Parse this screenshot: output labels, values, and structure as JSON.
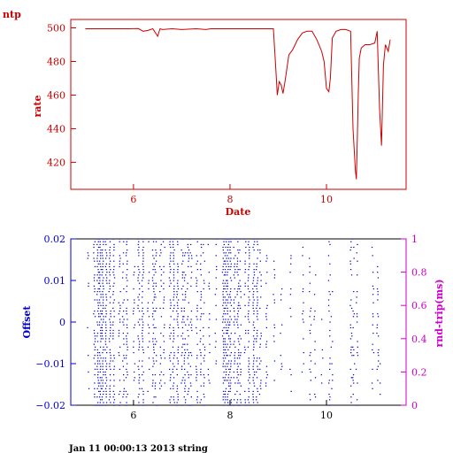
{
  "header": {
    "label": "ntp"
  },
  "footer": {
    "text": "Jan 11 00:00:13 2013 string"
  },
  "colors": {
    "red": "#cc0000",
    "blue": "#0000cc",
    "magenta": "#cc00cc",
    "axis": "#000000"
  },
  "chart_data": [
    {
      "type": "line",
      "xlabel": "Date",
      "ylabel": "rate",
      "xlim": [
        4.7,
        11.65
      ],
      "ylim": [
        404,
        505
      ],
      "xticks": [
        6,
        8,
        10
      ],
      "yticks": [
        420,
        440,
        460,
        480,
        500
      ],
      "series": [
        {
          "x": [
            5.0,
            5.5,
            5.9,
            6.1,
            6.2,
            6.3,
            6.4,
            6.5,
            6.55,
            6.6,
            6.8,
            7.0,
            7.3,
            7.5,
            7.6,
            7.8,
            8.2,
            8.6,
            8.9,
            8.95,
            8.98,
            9.02,
            9.06,
            9.1,
            9.14,
            9.18,
            9.22,
            9.3,
            9.4,
            9.5,
            9.6,
            9.7,
            9.8,
            9.9,
            9.95,
            10.0,
            10.05,
            10.08,
            10.12,
            10.2,
            10.3,
            10.4,
            10.5,
            10.55,
            10.6,
            10.62,
            10.64,
            10.66,
            10.68,
            10.72,
            10.8,
            10.9,
            11.0,
            11.05,
            11.1,
            11.14,
            11.18,
            11.22,
            11.28,
            11.32
          ],
          "y": [
            499.5,
            499.5,
            499.5,
            499.6,
            498,
            498.5,
            499.5,
            495,
            499.5,
            499,
            499.5,
            499,
            499.5,
            499,
            499.5,
            499.5,
            499.5,
            499.5,
            499.5,
            475,
            460,
            468,
            466,
            461,
            468,
            476,
            484,
            487,
            493,
            497,
            498,
            498,
            493,
            486,
            480,
            464,
            462,
            470,
            494,
            498,
            499,
            499,
            498,
            440,
            415,
            410,
            435,
            462,
            482,
            488,
            490,
            490,
            491,
            498,
            452,
            430,
            478,
            490,
            486,
            493
          ]
        }
      ]
    },
    {
      "type": "scatter",
      "ylabel": "Offset",
      "y2label": "rnd-trip(ms)",
      "xlim": [
        4.7,
        11.65
      ],
      "ylim": [
        -0.02,
        0.02
      ],
      "y2lim": [
        0,
        1
      ],
      "xticks": [
        6,
        8,
        10
      ],
      "yticks": [
        -0.02,
        -0.01,
        0,
        0.01,
        0.02
      ],
      "ytick_labels": [
        "−0.02",
        "−0.01",
        "0",
        "0.01",
        "0.02"
      ],
      "y2ticks": [
        0,
        0.2,
        0.4,
        0.6,
        0.8,
        1
      ],
      "series": [
        {
          "x": [
            5.05,
            5.18,
            5.25,
            5.3,
            5.35,
            5.42,
            5.5,
            5.58,
            5.7,
            5.78,
            5.85,
            6.0,
            6.1,
            6.18,
            6.3,
            6.4,
            6.45,
            6.55,
            6.62,
            6.75,
            6.82,
            6.9,
            7.0,
            7.05,
            7.12,
            7.18,
            7.3,
            7.38,
            7.45,
            7.55,
            7.7,
            7.85,
            7.9,
            7.95,
            8.0,
            8.08,
            8.15,
            8.2,
            8.3,
            8.38,
            8.48,
            8.55,
            8.62,
            8.75,
            8.9,
            9.05,
            9.25,
            9.5,
            9.65,
            9.75,
            9.9,
            10.05,
            10.1,
            10.5,
            10.55,
            10.62,
            10.95,
            11.05,
            11.1
          ],
          "density": [
            0.2,
            0.6,
            0.85,
            0.95,
            0.95,
            0.9,
            0.8,
            0.55,
            0.4,
            0.5,
            0.6,
            0.3,
            0.65,
            0.75,
            0.4,
            0.55,
            0.45,
            0.35,
            0.3,
            0.6,
            0.7,
            0.65,
            0.55,
            0.6,
            0.5,
            0.45,
            0.5,
            0.45,
            0.4,
            0.3,
            0.25,
            0.8,
            0.85,
            0.8,
            0.75,
            0.6,
            0.7,
            0.45,
            0.4,
            0.7,
            0.75,
            0.7,
            0.35,
            0.3,
            0.2,
            0.2,
            0.15,
            0.2,
            0.3,
            0.35,
            0.25,
            0.35,
            0.15,
            0.4,
            0.35,
            0.3,
            0.3,
            0.35,
            0.1
          ],
          "range": [
            [
              -0.02,
              0.02
            ],
            [
              -0.02,
              0.02
            ],
            [
              -0.02,
              0.02
            ],
            [
              -0.02,
              0.02
            ],
            [
              -0.02,
              0.02
            ],
            [
              -0.02,
              0.02
            ],
            [
              -0.02,
              0.02
            ],
            [
              -0.02,
              0.02
            ],
            [
              -0.02,
              0.02
            ],
            [
              -0.02,
              0.02
            ],
            [
              -0.02,
              0.02
            ],
            [
              -0.016,
              0.014
            ],
            [
              -0.02,
              0.02
            ],
            [
              -0.02,
              0.02
            ],
            [
              -0.018,
              0.02
            ],
            [
              -0.02,
              0.02
            ],
            [
              -0.02,
              0.02
            ],
            [
              -0.018,
              0.02
            ],
            [
              -0.018,
              0.02
            ],
            [
              -0.02,
              0.02
            ],
            [
              -0.02,
              0.02
            ],
            [
              -0.02,
              0.02
            ],
            [
              -0.02,
              0.02
            ],
            [
              -0.02,
              0.02
            ],
            [
              -0.02,
              0.02
            ],
            [
              -0.02,
              0.02
            ],
            [
              -0.02,
              0.02
            ],
            [
              -0.02,
              0.02
            ],
            [
              -0.02,
              0.02
            ],
            [
              -0.016,
              0.02
            ],
            [
              -0.015,
              0.02
            ],
            [
              -0.02,
              0.02
            ],
            [
              -0.02,
              0.02
            ],
            [
              -0.02,
              0.02
            ],
            [
              -0.02,
              0.02
            ],
            [
              -0.02,
              0.02
            ],
            [
              -0.02,
              0.02
            ],
            [
              -0.02,
              0.02
            ],
            [
              -0.02,
              0.02
            ],
            [
              -0.02,
              0.02
            ],
            [
              -0.02,
              0.02
            ],
            [
              -0.02,
              0.02
            ],
            [
              -0.018,
              0.02
            ],
            [
              -0.016,
              0.018
            ],
            [
              -0.016,
              0.016
            ],
            [
              -0.014,
              0.008
            ],
            [
              -0.018,
              0.02
            ],
            [
              -0.02,
              0.02
            ],
            [
              -0.02,
              0.016
            ],
            [
              -0.02,
              0.012
            ],
            [
              -0.018,
              0.004
            ],
            [
              -0.02,
              0.02
            ],
            [
              -0.016,
              0.01
            ],
            [
              -0.02,
              0.02
            ],
            [
              -0.02,
              0.02
            ],
            [
              -0.02,
              0.02
            ],
            [
              -0.018,
              0.02
            ],
            [
              -0.014,
              0.014
            ],
            [
              -0.018,
              -0.004
            ]
          ]
        }
      ]
    }
  ]
}
